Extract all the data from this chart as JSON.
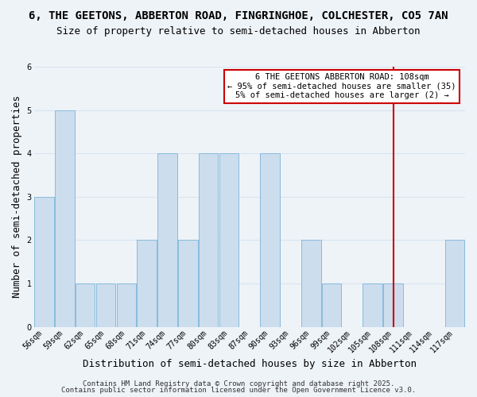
{
  "title_line1": "6, THE GEETONS, ABBERTON ROAD, FINGRINGHOE, COLCHESTER, CO5 7AN",
  "title_line2": "Size of property relative to semi-detached houses in Abberton",
  "xlabel": "Distribution of semi-detached houses by size in Abberton",
  "ylabel": "Number of semi-detached properties",
  "categories": [
    "56sqm",
    "59sqm",
    "62sqm",
    "65sqm",
    "68sqm",
    "71sqm",
    "74sqm",
    "77sqm",
    "80sqm",
    "83sqm",
    "87sqm",
    "90sqm",
    "93sqm",
    "96sqm",
    "99sqm",
    "102sqm",
    "105sqm",
    "108sqm",
    "111sqm",
    "114sqm",
    "117sqm"
  ],
  "values": [
    3,
    5,
    1,
    1,
    1,
    2,
    4,
    2,
    4,
    4,
    0,
    4,
    0,
    2,
    1,
    0,
    1,
    1,
    0,
    0,
    2
  ],
  "bar_color": "#ccdded",
  "bar_edgecolor": "#88bbdd",
  "redline_index": 17,
  "annotation_text": "6 THE GEETONS ABBERTON ROAD: 108sqm\n← 95% of semi-detached houses are smaller (35)\n5% of semi-detached houses are larger (2) →",
  "annotation_box_facecolor": "#ffffff",
  "annotation_box_edgecolor": "#cc0000",
  "footer_line1": "Contains HM Land Registry data © Crown copyright and database right 2025.",
  "footer_line2": "Contains public sector information licensed under the Open Government Licence v3.0.",
  "ylim": [
    0,
    6
  ],
  "yticks": [
    0,
    1,
    2,
    3,
    4,
    5,
    6
  ],
  "bg_color": "#eef3f8",
  "grid_color": "#d8e4f0",
  "title_fontsize": 10,
  "subtitle_fontsize": 9,
  "axis_label_fontsize": 9,
  "tick_fontsize": 7,
  "annot_fontsize": 7.5,
  "footer_fontsize": 6.5
}
